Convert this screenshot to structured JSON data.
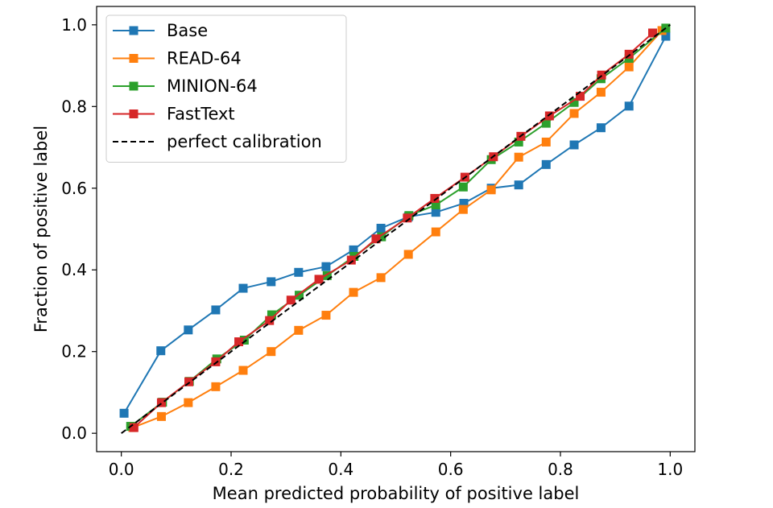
{
  "chart_data": {
    "type": "line",
    "title": "",
    "xlabel": "Mean predicted probability of positive label",
    "ylabel": "Fraction of positive label",
    "xlim": [
      -0.045,
      1.045
    ],
    "ylim": [
      -0.045,
      1.045
    ],
    "xticks": [
      0.0,
      0.2,
      0.4,
      0.6,
      0.8,
      1.0
    ],
    "yticks": [
      0.0,
      0.2,
      0.4,
      0.6,
      0.8,
      1.0
    ],
    "xtick_labels": [
      "0.0",
      "0.2",
      "0.4",
      "0.6",
      "0.8",
      "1.0"
    ],
    "ytick_labels": [
      "0.0",
      "0.2",
      "0.4",
      "0.6",
      "0.8",
      "1.0"
    ],
    "grid": false,
    "legend_position": "upper-left",
    "series": [
      {
        "name": "Base",
        "color": "#1f77b4",
        "marker": "square",
        "x": [
          0.005,
          0.072,
          0.122,
          0.172,
          0.222,
          0.273,
          0.323,
          0.373,
          0.423,
          0.473,
          0.523,
          0.573,
          0.624,
          0.674,
          0.724,
          0.774,
          0.825,
          0.874,
          0.925,
          0.992
        ],
        "y": [
          0.049,
          0.202,
          0.253,
          0.302,
          0.355,
          0.371,
          0.394,
          0.408,
          0.449,
          0.502,
          0.53,
          0.541,
          0.563,
          0.6,
          0.608,
          0.658,
          0.706,
          0.748,
          0.801,
          0.972
        ]
      },
      {
        "name": "READ-64",
        "color": "#ff7f0e",
        "marker": "square",
        "x": [
          0.021,
          0.073,
          0.122,
          0.172,
          0.222,
          0.273,
          0.323,
          0.373,
          0.423,
          0.473,
          0.523,
          0.573,
          0.623,
          0.674,
          0.724,
          0.774,
          0.825,
          0.874,
          0.925,
          0.985
        ],
        "y": [
          0.014,
          0.041,
          0.075,
          0.114,
          0.154,
          0.2,
          0.252,
          0.289,
          0.345,
          0.381,
          0.438,
          0.493,
          0.548,
          0.596,
          0.676,
          0.713,
          0.783,
          0.835,
          0.897,
          0.986
        ]
      },
      {
        "name": "MINION-64",
        "color": "#2ca02c",
        "marker": "square",
        "x": [
          0.017,
          0.075,
          0.124,
          0.174,
          0.224,
          0.274,
          0.324,
          0.375,
          0.424,
          0.474,
          0.524,
          0.573,
          0.623,
          0.674,
          0.724,
          0.774,
          0.825,
          0.874,
          0.925,
          0.992
        ],
        "y": [
          0.017,
          0.076,
          0.127,
          0.182,
          0.228,
          0.29,
          0.338,
          0.386,
          0.433,
          0.481,
          0.533,
          0.559,
          0.603,
          0.67,
          0.713,
          0.759,
          0.81,
          0.868,
          0.918,
          0.992
        ]
      },
      {
        "name": "FastText",
        "color": "#d62728",
        "marker": "square",
        "x": [
          0.023,
          0.073,
          0.123,
          0.172,
          0.214,
          0.27,
          0.309,
          0.36,
          0.419,
          0.464,
          0.521,
          0.571,
          0.626,
          0.678,
          0.728,
          0.78,
          0.836,
          0.875,
          0.925,
          0.968
        ],
        "y": [
          0.014,
          0.075,
          0.126,
          0.175,
          0.224,
          0.276,
          0.326,
          0.377,
          0.424,
          0.476,
          0.527,
          0.575,
          0.627,
          0.677,
          0.727,
          0.777,
          0.825,
          0.877,
          0.928,
          0.98
        ]
      }
    ],
    "reference_line": {
      "name": "perfect calibration",
      "color": "#000000",
      "style": "dashed",
      "x": [
        0.0,
        1.0
      ],
      "y": [
        0.0,
        1.0
      ]
    }
  }
}
